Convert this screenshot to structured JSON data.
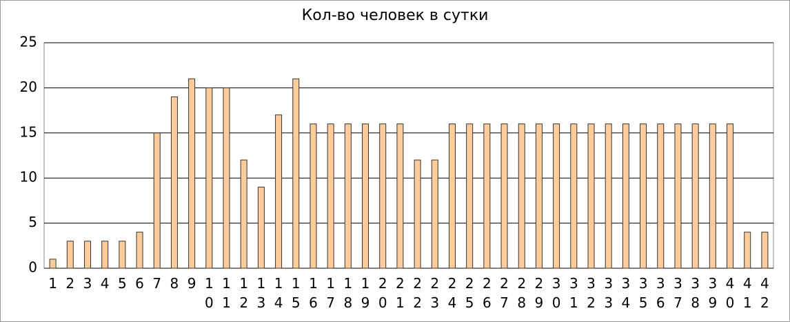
{
  "chart_data": {
    "type": "bar",
    "title": "Кол-во человек в сутки",
    "categories": [
      "1",
      "2",
      "3",
      "4",
      "5",
      "6",
      "7",
      "8",
      "9",
      "10",
      "11",
      "12",
      "13",
      "14",
      "15",
      "16",
      "17",
      "18",
      "19",
      "20",
      "21",
      "22",
      "23",
      "24",
      "25",
      "26",
      "27",
      "28",
      "29",
      "30",
      "31",
      "32",
      "33",
      "34",
      "35",
      "36",
      "37",
      "38",
      "39",
      "40",
      "41",
      "42"
    ],
    "values": [
      1,
      3,
      3,
      3,
      3,
      4,
      15,
      19,
      21,
      20,
      20,
      12,
      9,
      17,
      21,
      16,
      16,
      16,
      16,
      16,
      16,
      12,
      12,
      16,
      16,
      16,
      16,
      16,
      16,
      16,
      16,
      16,
      16,
      16,
      16,
      16,
      16,
      16,
      16,
      16,
      4,
      4
    ],
    "color": "#ffcc99",
    "ylim": [
      0,
      25
    ],
    "yticks": [
      0,
      5,
      10,
      15,
      20,
      25
    ],
    "grid": true
  }
}
